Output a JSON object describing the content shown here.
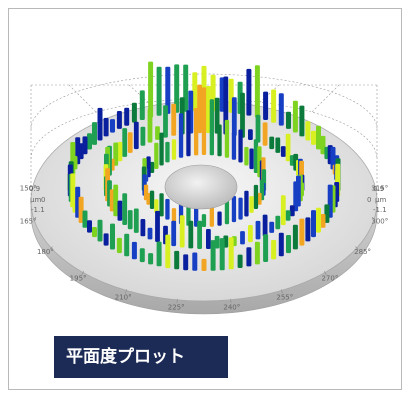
{
  "caption": "平面度プロット",
  "plot": {
    "title": "",
    "units_label": "µm",
    "left_scale": [
      "0.9",
      "0",
      "-1.1"
    ],
    "right_scale": [
      "0.9",
      "0",
      "-1.1"
    ],
    "angle_labels": [
      "315°",
      "300°",
      "285°",
      "270°",
      "255°",
      "240°",
      "225°",
      "210°",
      "195°",
      "180°",
      "165°",
      "150°"
    ],
    "rings": 3,
    "colors": {
      "frame": "#b9b9b9",
      "caption_bg": "#1c2b56",
      "caption_text": "#ffffff",
      "platter_top": "#dedede",
      "platter_rim": "#c4c4c4",
      "hub": "#cfcfcf",
      "bar_palette": [
        "#0a1f9e",
        "#163fc4",
        "#0b7a3a",
        "#1f9f52",
        "#7ed321",
        "#d8ef21",
        "#f2a522"
      ]
    }
  }
}
